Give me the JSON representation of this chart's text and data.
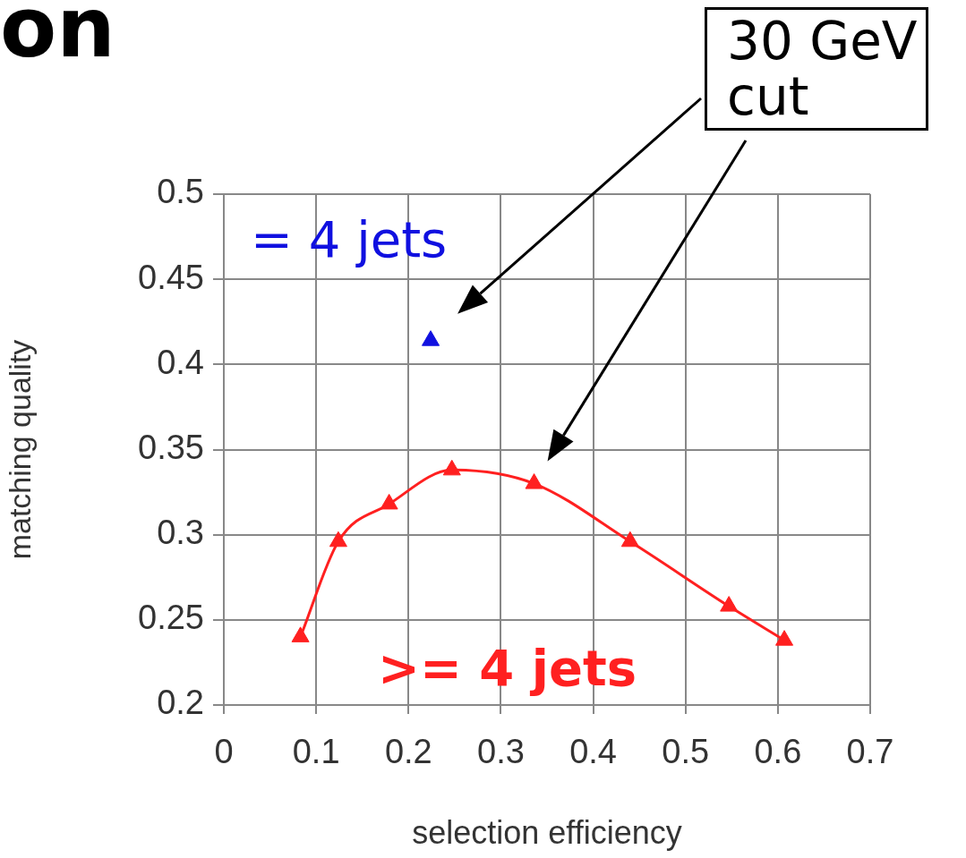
{
  "chart_data": {
    "type": "line",
    "title": "on",
    "xlabel": "selection efficiency",
    "ylabel": "matching quality",
    "xlim": [
      0,
      0.7
    ],
    "xticks": [
      0,
      0.1,
      0.2,
      0.3,
      0.4,
      0.5,
      0.6,
      0.7
    ],
    "ylim": [
      0.2,
      0.5
    ],
    "yticks": [
      0.2,
      0.25,
      0.3,
      0.35,
      0.4,
      0.45,
      0.5
    ],
    "grid": true,
    "legend": false,
    "marker": "triangle",
    "series": [
      {
        "name": "= 4 jets",
        "type": "scatter",
        "color": "#1010e0",
        "x": [
          0.224
        ],
        "values": [
          0.414
        ]
      },
      {
        "name": ">= 4 jets",
        "color": "#ff2020",
        "x": [
          0.083,
          0.124,
          0.179,
          0.247,
          0.336,
          0.44,
          0.547,
          0.607
        ],
        "values": [
          0.24,
          0.296,
          0.318,
          0.338,
          0.33,
          0.296,
          0.258,
          0.238
        ]
      }
    ],
    "annotations": [
      "30 GeV cut"
    ]
  }
}
